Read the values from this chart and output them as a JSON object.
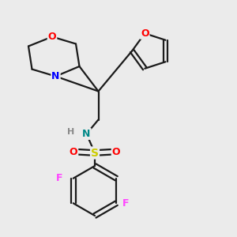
{
  "bg_color": "#ebebeb",
  "line_color": "#1a1a1a",
  "atom_colors": {
    "O": "#ff0000",
    "N_morph": "#0000ff",
    "N_amine": "#008888",
    "S": "#cccc00",
    "F": "#ff44ff",
    "H": "#888888"
  },
  "font_size": 9,
  "line_width": 1.6
}
